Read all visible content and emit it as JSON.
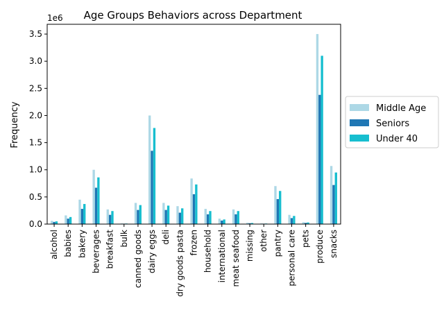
{
  "chart_data": {
    "type": "bar",
    "title": "Age Groups Behaviors across Department",
    "xlabel": "",
    "ylabel": "Frequency",
    "y_scale_label": "1e6",
    "ylim": [
      0,
      3.68
    ],
    "y_unit_multiplier": 1000000,
    "yticks": [
      "0.0",
      "0.5",
      "1.0",
      "1.5",
      "2.0",
      "2.5",
      "3.0",
      "3.5"
    ],
    "grid": false,
    "legend_position": "center-right outside",
    "categories": [
      "alcohol",
      "babies",
      "bakery",
      "beverages",
      "breakfast",
      "bulk",
      "canned goods",
      "dairy eggs",
      "deli",
      "dry goods pasta",
      "frozen",
      "household",
      "international",
      "meat seafood",
      "missing",
      "other",
      "pantry",
      "personal care",
      "pets",
      "produce",
      "snacks"
    ],
    "series": [
      {
        "name": "Middle Age",
        "color": "#add8e6",
        "values": [
          0.06,
          0.16,
          0.45,
          1.0,
          0.27,
          0.012,
          0.39,
          2.0,
          0.39,
          0.33,
          0.84,
          0.28,
          0.1,
          0.27,
          0.025,
          0.012,
          0.7,
          0.17,
          0.035,
          3.5,
          1.07
        ]
      },
      {
        "name": "Seniors",
        "color": "#1f77b4",
        "values": [
          0.04,
          0.1,
          0.28,
          0.67,
          0.17,
          0.008,
          0.26,
          1.35,
          0.26,
          0.21,
          0.55,
          0.18,
          0.065,
          0.18,
          0.016,
          0.008,
          0.46,
          0.11,
          0.022,
          2.38,
          0.72
        ]
      },
      {
        "name": "Under 40",
        "color": "#17becf",
        "values": [
          0.05,
          0.13,
          0.37,
          0.86,
          0.24,
          0.01,
          0.35,
          1.77,
          0.34,
          0.29,
          0.73,
          0.24,
          0.085,
          0.24,
          0.02,
          0.01,
          0.61,
          0.15,
          0.03,
          3.1,
          0.95
        ]
      }
    ]
  }
}
